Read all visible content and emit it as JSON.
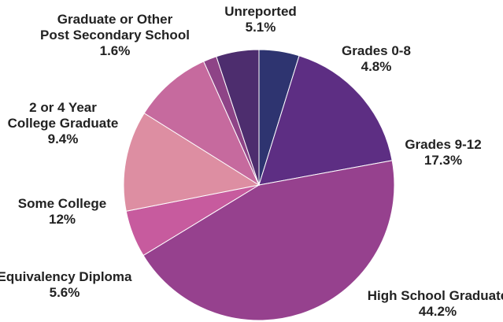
{
  "chart_data": {
    "type": "pie",
    "slices": [
      {
        "label_lines": [
          "Grades 0-8"
        ],
        "value": 4.8,
        "value_label": "4.8%",
        "color": "#2e3470"
      },
      {
        "label_lines": [
          "Grades 9-12"
        ],
        "value": 17.3,
        "value_label": "17.3%",
        "color": "#5d2e83"
      },
      {
        "label_lines": [
          "High School Graduate"
        ],
        "value": 44.2,
        "value_label": "44.2%",
        "color": "#96418e"
      },
      {
        "label_lines": [
          "Equivalency Diploma"
        ],
        "value": 5.6,
        "value_label": "5.6%",
        "color": "#c75b9e"
      },
      {
        "label_lines": [
          "Some College"
        ],
        "value": 12,
        "value_label": "12%",
        "color": "#dd8ea2"
      },
      {
        "label_lines": [
          "2 or 4 Year",
          "College Graduate"
        ],
        "value": 9.4,
        "value_label": "9.4%",
        "color": "#c66a9e"
      },
      {
        "label_lines": [
          "Graduate or Other",
          "Post Secondary School"
        ],
        "value": 1.6,
        "value_label": "1.6%",
        "color": "#8e4487"
      },
      {
        "label_lines": [
          "Unreported"
        ],
        "value": 5.1,
        "value_label": "5.1%",
        "color": "#4d2d6e"
      }
    ],
    "start_angle_deg": 0,
    "direction": "clockwise",
    "legend": "none",
    "title": ""
  }
}
